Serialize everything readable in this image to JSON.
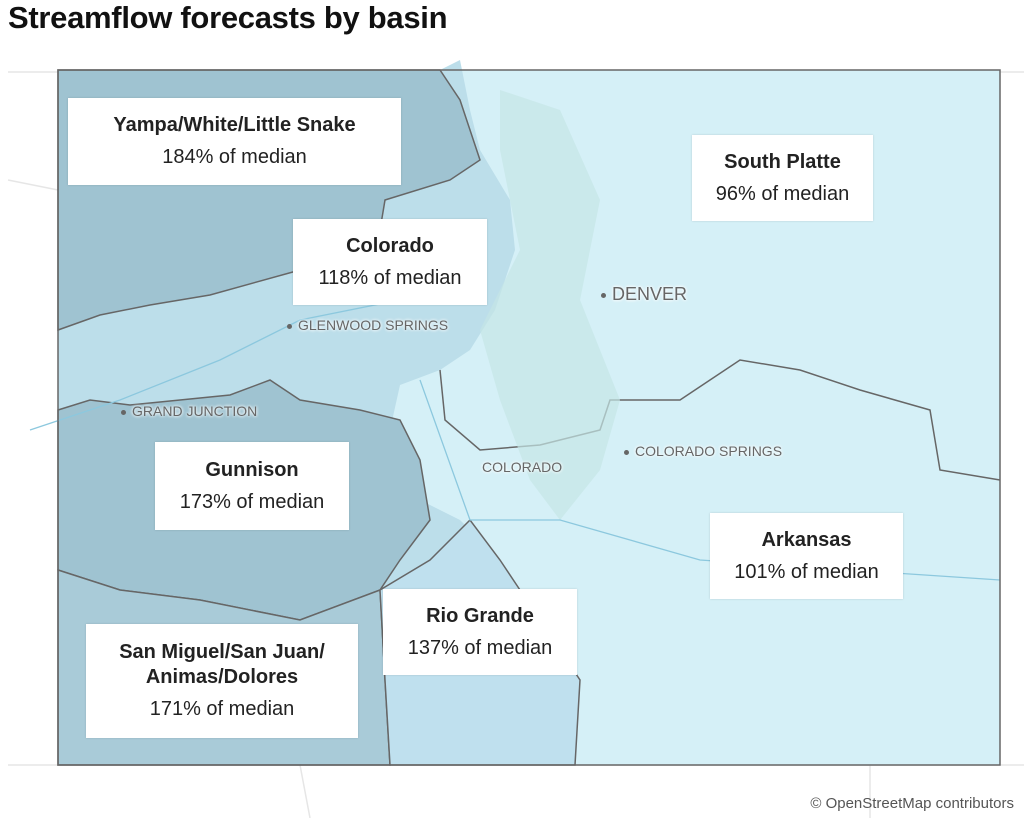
{
  "title": "Streamflow forecasts by basin",
  "basins": [
    {
      "name_lines": [
        "Yampa/White/Little Snake"
      ],
      "label": "184% of median"
    },
    {
      "name_lines": [
        "South Platte"
      ],
      "label": "96% of median"
    },
    {
      "name_lines": [
        "Colorado"
      ],
      "label": "118% of median"
    },
    {
      "name_lines": [
        "Gunnison"
      ],
      "label": "173% of median"
    },
    {
      "name_lines": [
        "Arkansas"
      ],
      "label": "101% of median"
    },
    {
      "name_lines": [
        "Rio Grande"
      ],
      "label": "137% of median"
    },
    {
      "name_lines": [
        "San Miguel/San Juan/",
        "Animas/Dolores"
      ],
      "label": "171% of median"
    }
  ],
  "cities": [
    "DENVER",
    "GLENWOOD SPRINGS",
    "GRAND JUNCTION",
    "COLORADO SPRINGS",
    "COLORADO"
  ],
  "attribution": "© OpenStreetMap contributors"
}
